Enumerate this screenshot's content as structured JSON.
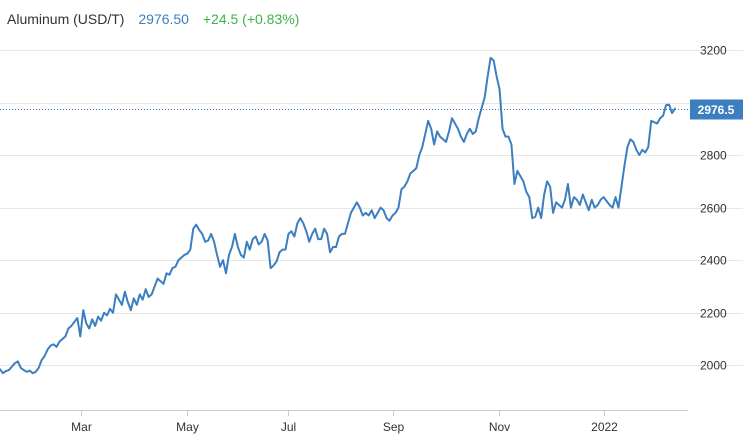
{
  "header": {
    "title": "Aluminum (USD/T)",
    "price": "2976.50",
    "change": "+24.5 (+0.83%)"
  },
  "colors": {
    "line": "#3c7fc0",
    "change_positive": "#39b54a",
    "last_label_bg": "#3c7fc0",
    "grid": "#e6e6e6"
  },
  "chart_data": {
    "type": "line",
    "title": "Aluminum (USD/T)",
    "xlabel": "",
    "ylabel": "",
    "ylim": [
      1830,
      3390
    ],
    "grid": "horizontal",
    "yticks": [
      {
        "value": 2000,
        "label": "2000"
      },
      {
        "value": 2200,
        "label": "2200"
      },
      {
        "value": 2400,
        "label": "2400"
      },
      {
        "value": 2600,
        "label": "2600"
      },
      {
        "value": 2800,
        "label": "2800"
      },
      {
        "value": 3000,
        "label": ""
      },
      {
        "value": 3200,
        "label": "3200"
      }
    ],
    "xticks": [
      {
        "pos": 0.1175,
        "label": "Mar"
      },
      {
        "pos": 0.272,
        "label": "May"
      },
      {
        "pos": 0.419,
        "label": "Jul"
      },
      {
        "pos": 0.571,
        "label": "Sep"
      },
      {
        "pos": 0.726,
        "label": "Nov"
      },
      {
        "pos": 0.8775,
        "label": "2022"
      }
    ],
    "last_value": 2976.5,
    "last_value_label": "2976.5",
    "series": [
      {
        "values": [
          1985,
          1970,
          1978,
          1982,
          1995,
          2008,
          2015,
          1990,
          1982,
          1975,
          1980,
          1970,
          1975,
          1990,
          2020,
          2035,
          2060,
          2075,
          2080,
          2070,
          2090,
          2100,
          2110,
          2140,
          2150,
          2165,
          2180,
          2110,
          2210,
          2160,
          2140,
          2175,
          2150,
          2185,
          2170,
          2200,
          2190,
          2215,
          2200,
          2270,
          2250,
          2230,
          2280,
          2240,
          2210,
          2255,
          2230,
          2270,
          2250,
          2290,
          2260,
          2270,
          2300,
          2330,
          2320,
          2310,
          2350,
          2345,
          2370,
          2375,
          2400,
          2410,
          2420,
          2425,
          2440,
          2520,
          2535,
          2515,
          2500,
          2470,
          2475,
          2500,
          2470,
          2420,
          2375,
          2400,
          2350,
          2420,
          2450,
          2500,
          2450,
          2420,
          2410,
          2470,
          2440,
          2480,
          2490,
          2460,
          2470,
          2500,
          2475,
          2370,
          2380,
          2395,
          2430,
          2440,
          2440,
          2500,
          2510,
          2490,
          2540,
          2560,
          2540,
          2510,
          2470,
          2500,
          2520,
          2480,
          2480,
          2520,
          2500,
          2430,
          2450,
          2450,
          2490,
          2500,
          2500,
          2540,
          2580,
          2600,
          2620,
          2600,
          2570,
          2580,
          2570,
          2590,
          2560,
          2580,
          2600,
          2590,
          2560,
          2550,
          2570,
          2580,
          2600,
          2670,
          2680,
          2700,
          2730,
          2740,
          2750,
          2800,
          2830,
          2880,
          2930,
          2900,
          2840,
          2890,
          2870,
          2860,
          2850,
          2890,
          2940,
          2920,
          2900,
          2870,
          2850,
          2880,
          2900,
          2880,
          2890,
          2940,
          2980,
          3020,
          3100,
          3170,
          3160,
          3100,
          3050,
          2900,
          2870,
          2870,
          2840,
          2690,
          2740,
          2720,
          2700,
          2660,
          2640,
          2560,
          2565,
          2600,
          2560,
          2650,
          2700,
          2680,
          2580,
          2620,
          2610,
          2600,
          2630,
          2690,
          2600,
          2640,
          2630,
          2610,
          2650,
          2620,
          2590,
          2630,
          2600,
          2610,
          2630,
          2640,
          2625,
          2610,
          2600,
          2640,
          2600,
          2680,
          2760,
          2830,
          2860,
          2850,
          2820,
          2800,
          2820,
          2810,
          2830,
          2930,
          2925,
          2920,
          2940,
          2950,
          2990,
          2992,
          2960,
          2976.5
        ]
      }
    ]
  }
}
